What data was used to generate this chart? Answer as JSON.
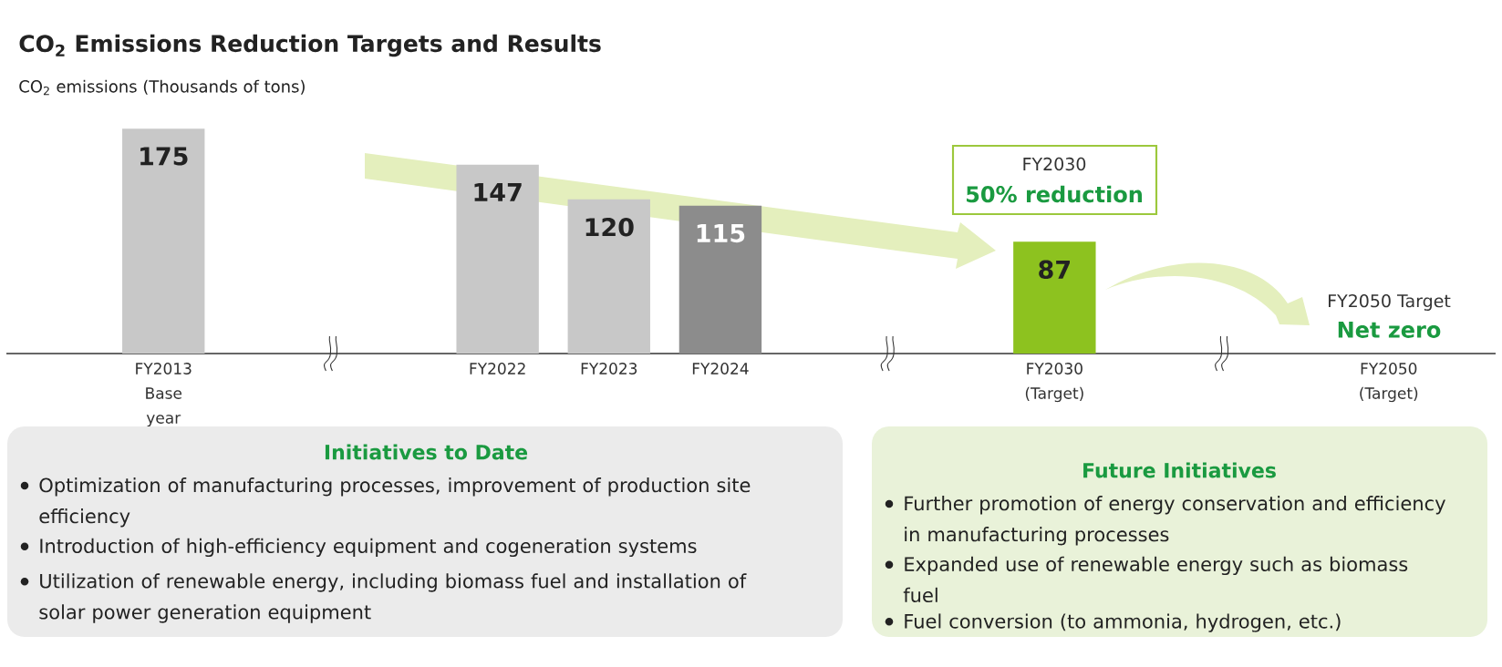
{
  "chart_data": {
    "type": "bar",
    "title": "CO$_{2}$ Emissions Reduction Targets and Results",
    "ylabel": "CO$_{2}$ emissions (Thousands of tons)",
    "categories": [
      "FY2013 Base year",
      "FY2022",
      "FY2023",
      "FY2024",
      "FY2030 (Target)",
      "FY2050 (Target)"
    ],
    "values": [
      175,
      147,
      120,
      115,
      87,
      null
    ],
    "colors": [
      "#c8c8c8",
      "#c8c8c8",
      "#c8c8c8",
      "#8c8c8c",
      "#8dc21f",
      null
    ],
    "data_labels": true,
    "annotations": [
      "FY2030",
      "50% reduction",
      "FY2050 Target",
      "Net zero",
      "Initiatives to Date",
      "Optimization of manufacturing processes, improvement of production site efficiency",
      "Introduction of high-efficiency equipment and cogeneration systems",
      "Utilization of renewable energy, including biomass fuel and installation of solar power generation equipment",
      "Future Initiatives",
      "Further promotion of energy conservation and efficiency in manufacturing processes",
      "Expanded use of renewable energy such as biomass fuel",
      "Fuel conversion (to ammonia, hydrogen, etc.)"
    ]
  }
}
